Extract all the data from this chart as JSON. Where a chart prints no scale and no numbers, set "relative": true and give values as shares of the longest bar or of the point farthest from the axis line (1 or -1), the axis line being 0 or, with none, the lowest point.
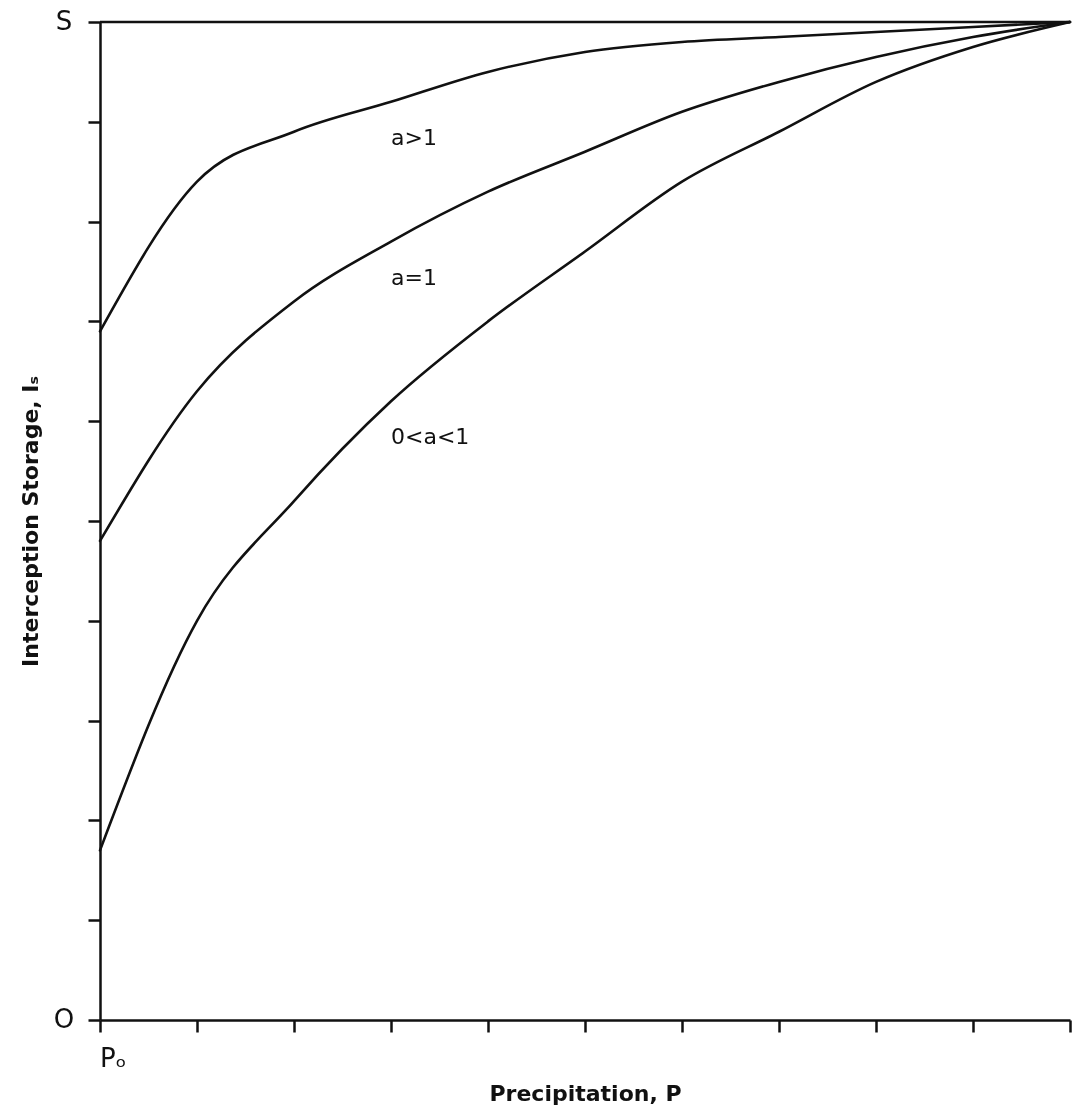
{
  "chart_data": {
    "type": "line",
    "xlabel": "Precipitation, P",
    "ylabel": "Interception Storage, Iₛ",
    "relative": true,
    "categories": [
      null,
      null,
      null,
      null,
      null,
      null,
      null,
      null,
      null,
      null,
      null
    ],
    "series": [
      {
        "name": "a>1",
        "color": "#111111",
        "values": [
          0.69,
          0.84,
          0.89,
          0.92,
          0.95,
          0.97,
          0.98,
          0.985,
          0.99,
          0.995,
          1
        ]
      },
      {
        "name": "a=1",
        "color": "#111111",
        "values": [
          0.48,
          0.63,
          0.72,
          0.78,
          0.83,
          0.87,
          0.91,
          0.94,
          0.965,
          0.985,
          1
        ]
      },
      {
        "name": "0<a<1",
        "color": "#111111",
        "values": [
          0.17,
          0.4,
          0.52,
          0.62,
          0.7,
          0.77,
          0.84,
          0.89,
          0.94,
          0.975,
          1
        ]
      }
    ],
    "annotations": [
      "S",
      "O",
      "Pₒ"
    ],
    "ref_lines": [
      {
        "axis": "y",
        "value": 1,
        "color": "#111111"
      }
    ],
    "grid": false
  }
}
